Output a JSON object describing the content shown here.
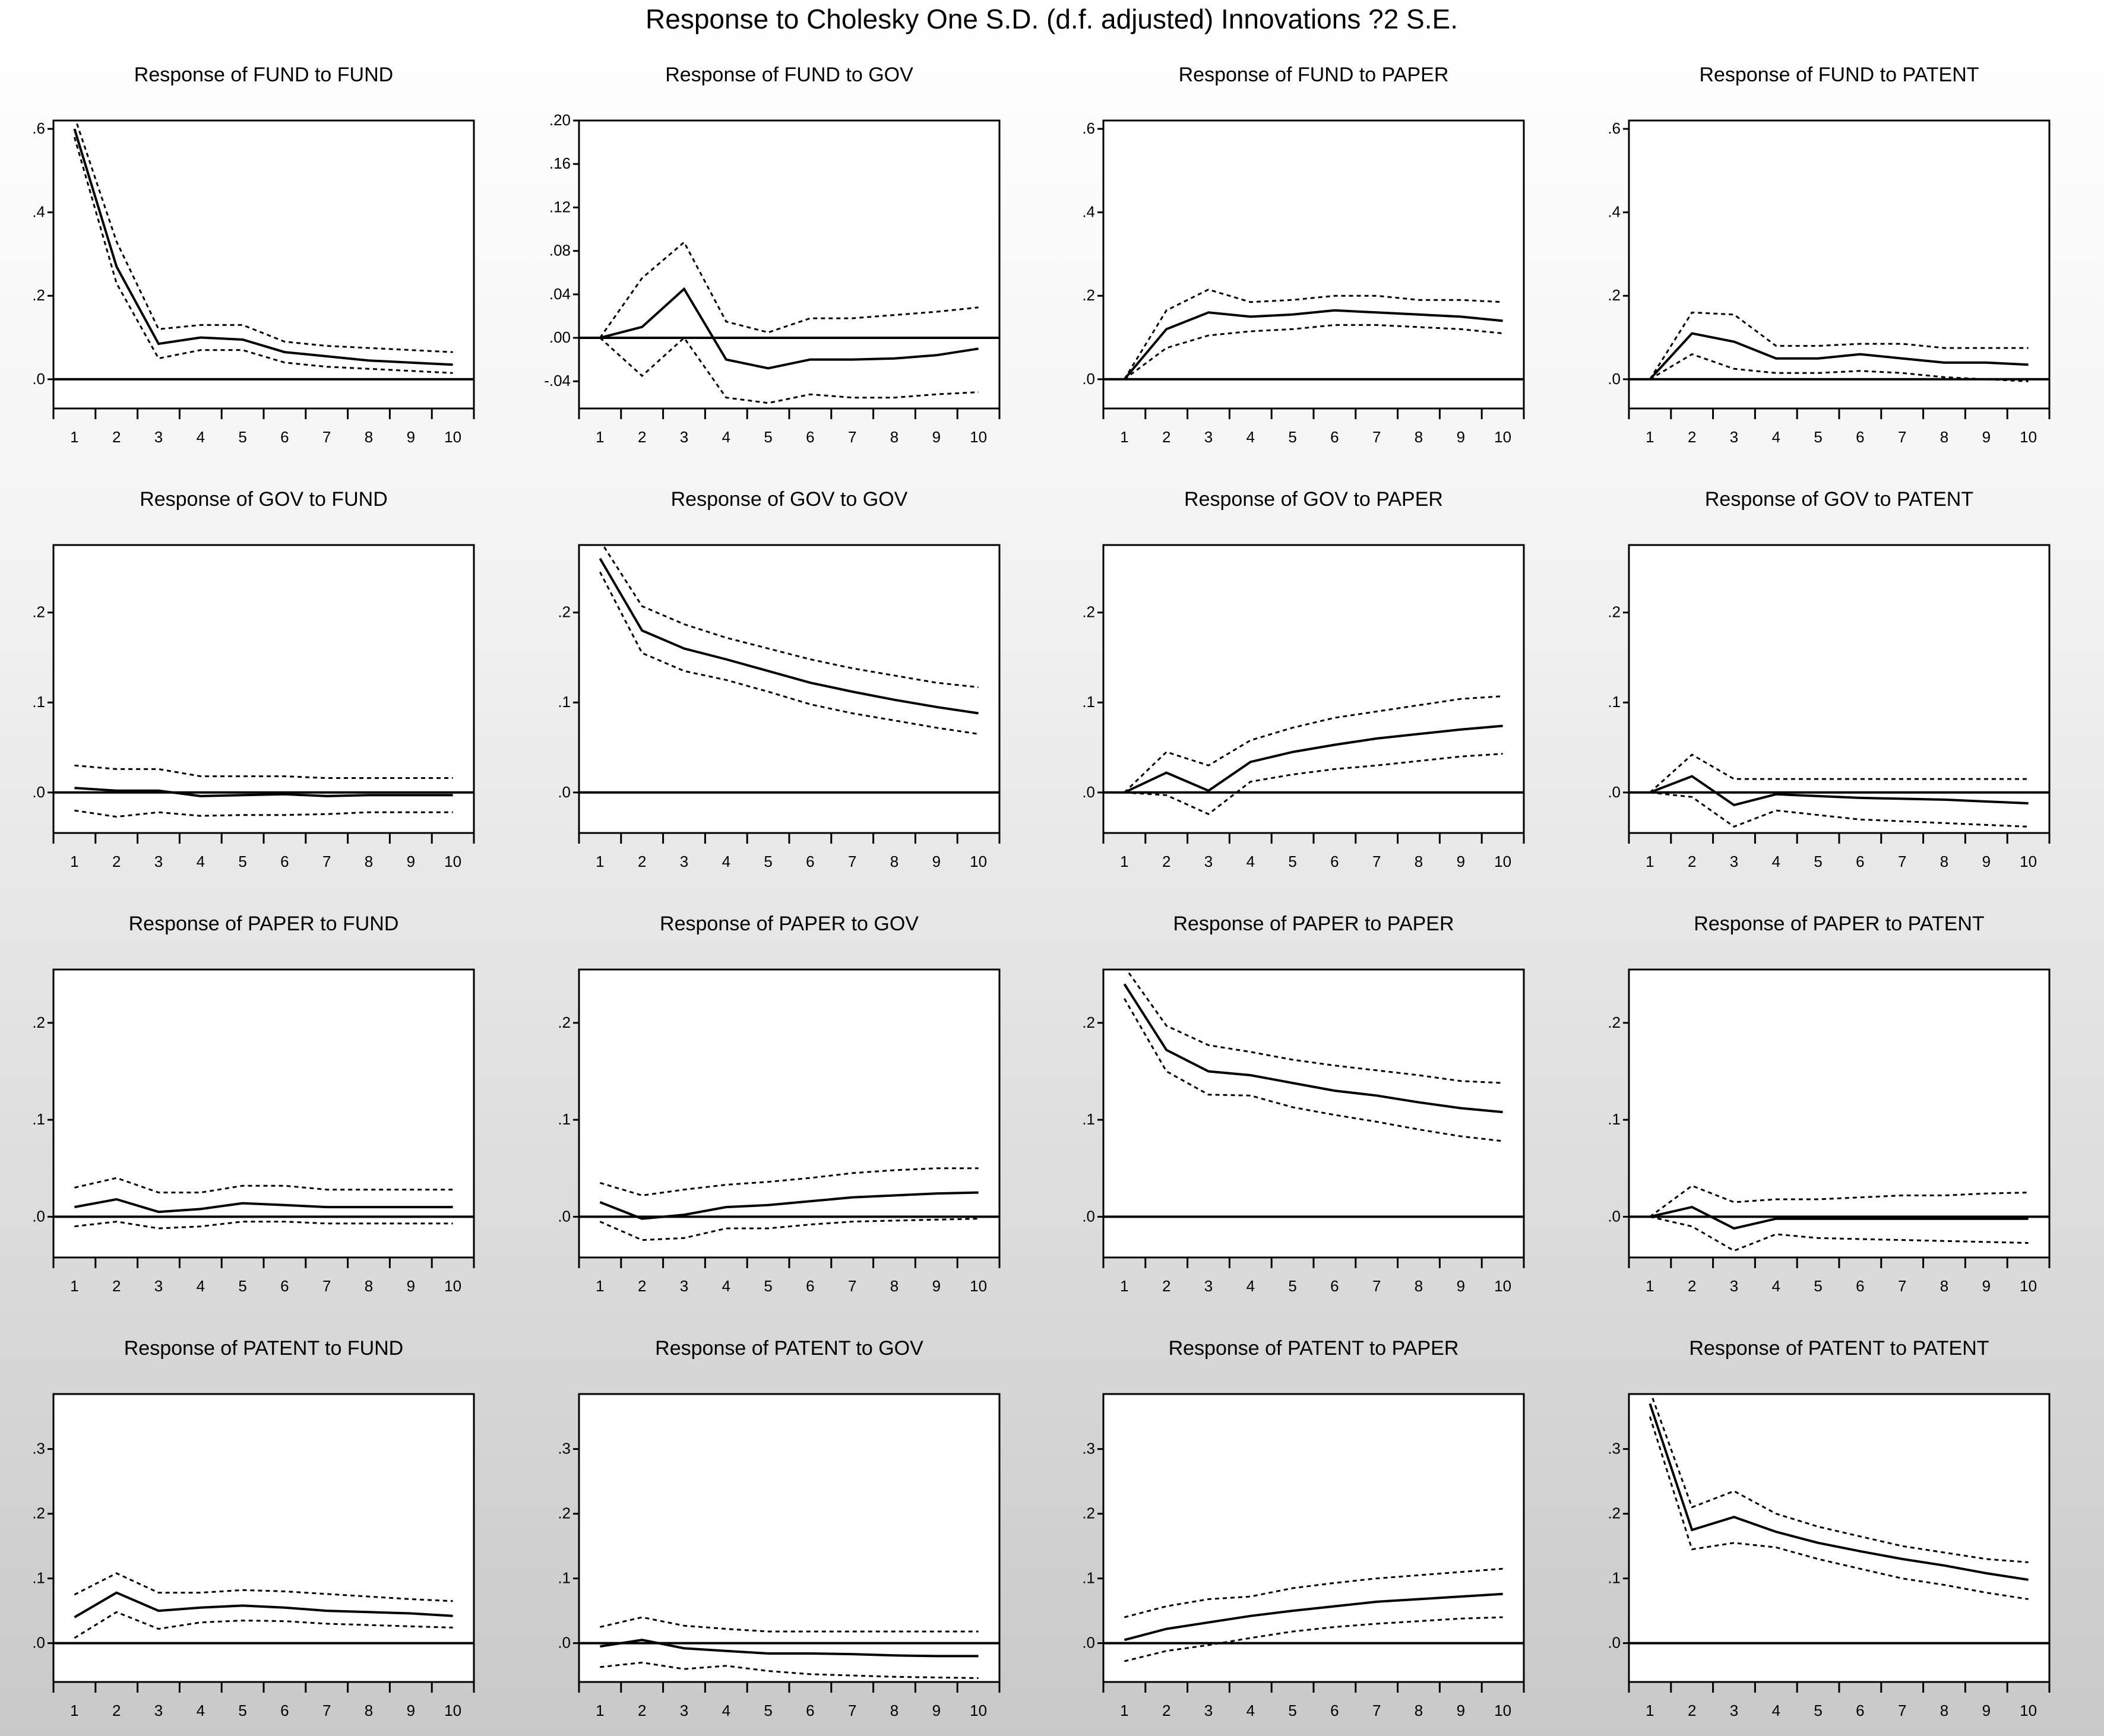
{
  "title": "Response to Cholesky One S.D. (d.f. adjusted) Innovations ?2 S.E.",
  "chart_data": [
    {
      "type": "line",
      "title": "Response of FUND to FUND",
      "x": [
        1,
        2,
        3,
        4,
        5,
        6,
        7,
        8,
        9,
        10
      ],
      "ylim": [
        -0.07,
        0.62
      ],
      "yticks": [
        0,
        0.2,
        0.4,
        0.6
      ],
      "ytick_labels": [
        ".0",
        ".2",
        ".4",
        ".6"
      ],
      "series": [
        {
          "values": [
            0.6,
            0.27,
            0.085,
            0.1,
            0.095,
            0.065,
            0.055,
            0.045,
            0.04,
            0.035
          ]
        },
        {
          "values": [
            0.63,
            0.33,
            0.12,
            0.13,
            0.13,
            0.09,
            0.08,
            0.075,
            0.07,
            0.065
          ]
        },
        {
          "values": [
            0.58,
            0.23,
            0.05,
            0.07,
            0.07,
            0.04,
            0.03,
            0.025,
            0.02,
            0.015
          ]
        }
      ]
    },
    {
      "type": "line",
      "title": "Response of FUND to GOV",
      "x": [
        1,
        2,
        3,
        4,
        5,
        6,
        7,
        8,
        9,
        10
      ],
      "ylim": [
        -0.065,
        0.2
      ],
      "yticks": [
        -0.04,
        0,
        0.04,
        0.08,
        0.12,
        0.16,
        0.2
      ],
      "ytick_labels": [
        "-.04",
        ".00",
        ".04",
        ".08",
        ".12",
        ".16",
        ".20"
      ],
      "series": [
        {
          "values": [
            0,
            0.01,
            0.045,
            -0.02,
            -0.028,
            -0.02,
            -0.02,
            -0.019,
            -0.016,
            -0.01
          ]
        },
        {
          "values": [
            0,
            0.055,
            0.088,
            0.015,
            0.005,
            0.018,
            0.018,
            0.021,
            0.024,
            0.028
          ]
        },
        {
          "values": [
            0,
            -0.035,
            0,
            -0.055,
            -0.06,
            -0.052,
            -0.055,
            -0.055,
            -0.052,
            -0.05
          ]
        }
      ]
    },
    {
      "type": "line",
      "title": "Response of FUND to PAPER",
      "x": [
        1,
        2,
        3,
        4,
        5,
        6,
        7,
        8,
        9,
        10
      ],
      "ylim": [
        -0.07,
        0.62
      ],
      "yticks": [
        0,
        0.2,
        0.4,
        0.6
      ],
      "ytick_labels": [
        ".0",
        ".2",
        ".4",
        ".6"
      ],
      "series": [
        {
          "values": [
            0,
            0.12,
            0.16,
            0.15,
            0.155,
            0.165,
            0.16,
            0.155,
            0.15,
            0.14
          ]
        },
        {
          "values": [
            0,
            0.165,
            0.215,
            0.185,
            0.19,
            0.2,
            0.2,
            0.19,
            0.19,
            0.185
          ]
        },
        {
          "values": [
            0,
            0.075,
            0.105,
            0.115,
            0.12,
            0.13,
            0.13,
            0.125,
            0.12,
            0.11
          ]
        }
      ]
    },
    {
      "type": "line",
      "title": "Response of FUND to PATENT",
      "x": [
        1,
        2,
        3,
        4,
        5,
        6,
        7,
        8,
        9,
        10
      ],
      "ylim": [
        -0.07,
        0.62
      ],
      "yticks": [
        0,
        0.2,
        0.4,
        0.6
      ],
      "ytick_labels": [
        ".0",
        ".2",
        ".4",
        ".6"
      ],
      "series": [
        {
          "values": [
            0,
            0.11,
            0.09,
            0.05,
            0.05,
            0.06,
            0.05,
            0.04,
            0.04,
            0.035
          ]
        },
        {
          "values": [
            0,
            0.16,
            0.155,
            0.08,
            0.08,
            0.085,
            0.085,
            0.075,
            0.075,
            0.075
          ]
        },
        {
          "values": [
            0,
            0.06,
            0.025,
            0.015,
            0.015,
            0.02,
            0.015,
            0.005,
            0.0,
            -0.005
          ]
        }
      ]
    },
    {
      "type": "line",
      "title": "Response of GOV to FUND",
      "x": [
        1,
        2,
        3,
        4,
        5,
        6,
        7,
        8,
        9,
        10
      ],
      "ylim": [
        -0.045,
        0.275
      ],
      "yticks": [
        0,
        0.1,
        0.2
      ],
      "ytick_labels": [
        ".0",
        ".1",
        ".2"
      ],
      "series": [
        {
          "values": [
            0.005,
            0.002,
            0.002,
            -0.004,
            -0.003,
            -0.002,
            -0.004,
            -0.003,
            -0.003,
            -0.003
          ]
        },
        {
          "values": [
            0.03,
            0.026,
            0.026,
            0.018,
            0.018,
            0.018,
            0.016,
            0.016,
            0.016,
            0.016
          ]
        },
        {
          "values": [
            -0.02,
            -0.027,
            -0.022,
            -0.026,
            -0.025,
            -0.025,
            -0.024,
            -0.022,
            -0.022,
            -0.022
          ]
        }
      ]
    },
    {
      "type": "line",
      "title": "Response of GOV to GOV",
      "x": [
        1,
        2,
        3,
        4,
        5,
        6,
        7,
        8,
        9,
        10
      ],
      "ylim": [
        -0.045,
        0.275
      ],
      "yticks": [
        0,
        0.1,
        0.2
      ],
      "ytick_labels": [
        ".0",
        ".1",
        ".2"
      ],
      "series": [
        {
          "values": [
            0.26,
            0.18,
            0.16,
            0.148,
            0.135,
            0.122,
            0.112,
            0.103,
            0.095,
            0.088
          ]
        },
        {
          "values": [
            0.28,
            0.207,
            0.187,
            0.172,
            0.16,
            0.148,
            0.138,
            0.13,
            0.122,
            0.117
          ]
        },
        {
          "values": [
            0.245,
            0.155,
            0.135,
            0.125,
            0.112,
            0.098,
            0.088,
            0.08,
            0.072,
            0.065
          ]
        }
      ]
    },
    {
      "type": "line",
      "title": "Response of GOV to PAPER",
      "x": [
        1,
        2,
        3,
        4,
        5,
        6,
        7,
        8,
        9,
        10
      ],
      "ylim": [
        -0.045,
        0.275
      ],
      "yticks": [
        0,
        0.1,
        0.2
      ],
      "ytick_labels": [
        ".0",
        ".1",
        ".2"
      ],
      "series": [
        {
          "values": [
            0,
            0.022,
            0.002,
            0.034,
            0.045,
            0.053,
            0.06,
            0.065,
            0.07,
            0.074
          ]
        },
        {
          "values": [
            0,
            0.045,
            0.03,
            0.058,
            0.072,
            0.083,
            0.09,
            0.097,
            0.104,
            0.107
          ]
        },
        {
          "values": [
            0,
            -0.003,
            -0.024,
            0.012,
            0.02,
            0.026,
            0.03,
            0.035,
            0.04,
            0.043
          ]
        }
      ]
    },
    {
      "type": "line",
      "title": "Response of GOV to PATENT",
      "x": [
        1,
        2,
        3,
        4,
        5,
        6,
        7,
        8,
        9,
        10
      ],
      "ylim": [
        -0.045,
        0.275
      ],
      "yticks": [
        0,
        0.1,
        0.2
      ],
      "ytick_labels": [
        ".0",
        ".1",
        ".2"
      ],
      "series": [
        {
          "values": [
            0,
            0.018,
            -0.014,
            -0.002,
            -0.004,
            -0.006,
            -0.007,
            -0.008,
            -0.01,
            -0.012
          ]
        },
        {
          "values": [
            0,
            0.042,
            0.015,
            0.015,
            0.015,
            0.015,
            0.015,
            0.015,
            0.015,
            0.015
          ]
        },
        {
          "values": [
            0,
            -0.005,
            -0.038,
            -0.02,
            -0.025,
            -0.03,
            -0.032,
            -0.034,
            -0.036,
            -0.038
          ]
        }
      ]
    },
    {
      "type": "line",
      "title": "Response of PAPER to FUND",
      "x": [
        1,
        2,
        3,
        4,
        5,
        6,
        7,
        8,
        9,
        10
      ],
      "ylim": [
        -0.042,
        0.255
      ],
      "yticks": [
        0,
        0.1,
        0.2
      ],
      "ytick_labels": [
        ".0",
        ".1",
        ".2"
      ],
      "series": [
        {
          "values": [
            0.01,
            0.018,
            0.005,
            0.008,
            0.014,
            0.012,
            0.01,
            0.01,
            0.01,
            0.01
          ]
        },
        {
          "values": [
            0.03,
            0.04,
            0.025,
            0.025,
            0.032,
            0.032,
            0.028,
            0.028,
            0.028,
            0.028
          ]
        },
        {
          "values": [
            -0.01,
            -0.005,
            -0.012,
            -0.01,
            -0.005,
            -0.005,
            -0.007,
            -0.007,
            -0.007,
            -0.007
          ]
        }
      ]
    },
    {
      "type": "line",
      "title": "Response of PAPER to GOV",
      "x": [
        1,
        2,
        3,
        4,
        5,
        6,
        7,
        8,
        9,
        10
      ],
      "ylim": [
        -0.042,
        0.255
      ],
      "yticks": [
        0,
        0.1,
        0.2
      ],
      "ytick_labels": [
        ".0",
        ".1",
        ".2"
      ],
      "series": [
        {
          "values": [
            0.015,
            -0.002,
            0.002,
            0.01,
            0.012,
            0.016,
            0.02,
            0.022,
            0.024,
            0.025
          ]
        },
        {
          "values": [
            0.035,
            0.022,
            0.028,
            0.033,
            0.036,
            0.04,
            0.045,
            0.048,
            0.05,
            0.05
          ]
        },
        {
          "values": [
            -0.005,
            -0.024,
            -0.022,
            -0.012,
            -0.012,
            -0.008,
            -0.005,
            -0.004,
            -0.003,
            -0.002
          ]
        }
      ]
    },
    {
      "type": "line",
      "title": "Response of PAPER to PAPER",
      "x": [
        1,
        2,
        3,
        4,
        5,
        6,
        7,
        8,
        9,
        10
      ],
      "ylim": [
        -0.042,
        0.255
      ],
      "yticks": [
        0,
        0.1,
        0.2
      ],
      "ytick_labels": [
        ".0",
        ".1",
        ".2"
      ],
      "series": [
        {
          "values": [
            0.24,
            0.172,
            0.15,
            0.146,
            0.138,
            0.13,
            0.125,
            0.118,
            0.112,
            0.108
          ]
        },
        {
          "values": [
            0.258,
            0.197,
            0.177,
            0.17,
            0.162,
            0.156,
            0.151,
            0.146,
            0.14,
            0.138
          ]
        },
        {
          "values": [
            0.225,
            0.15,
            0.126,
            0.125,
            0.113,
            0.105,
            0.098,
            0.09,
            0.083,
            0.078
          ]
        }
      ]
    },
    {
      "type": "line",
      "title": "Response of PAPER to PATENT",
      "x": [
        1,
        2,
        3,
        4,
        5,
        6,
        7,
        8,
        9,
        10
      ],
      "ylim": [
        -0.042,
        0.255
      ],
      "yticks": [
        0,
        0.1,
        0.2
      ],
      "ytick_labels": [
        ".0",
        ".1",
        ".2"
      ],
      "series": [
        {
          "values": [
            0,
            0.01,
            -0.012,
            -0.002,
            -0.002,
            -0.002,
            -0.002,
            -0.002,
            -0.002,
            -0.002
          ]
        },
        {
          "values": [
            0,
            0.032,
            0.015,
            0.018,
            0.018,
            0.02,
            0.022,
            0.022,
            0.024,
            0.025
          ]
        },
        {
          "values": [
            0,
            -0.01,
            -0.035,
            -0.018,
            -0.022,
            -0.023,
            -0.024,
            -0.025,
            -0.026,
            -0.027
          ]
        }
      ]
    },
    {
      "type": "line",
      "title": "Response of PATENT to FUND",
      "x": [
        1,
        2,
        3,
        4,
        5,
        6,
        7,
        8,
        9,
        10
      ],
      "ylim": [
        -0.06,
        0.385
      ],
      "yticks": [
        0,
        0.1,
        0.2,
        0.3
      ],
      "ytick_labels": [
        ".0",
        ".1",
        ".2",
        ".3"
      ],
      "series": [
        {
          "values": [
            0.04,
            0.078,
            0.05,
            0.055,
            0.058,
            0.055,
            0.05,
            0.048,
            0.046,
            0.042
          ]
        },
        {
          "values": [
            0.075,
            0.108,
            0.078,
            0.078,
            0.082,
            0.08,
            0.076,
            0.072,
            0.068,
            0.065
          ]
        },
        {
          "values": [
            0.008,
            0.048,
            0.022,
            0.032,
            0.035,
            0.034,
            0.03,
            0.028,
            0.026,
            0.024
          ]
        }
      ]
    },
    {
      "type": "line",
      "title": "Response of PATENT to GOV",
      "x": [
        1,
        2,
        3,
        4,
        5,
        6,
        7,
        8,
        9,
        10
      ],
      "ylim": [
        -0.06,
        0.385
      ],
      "yticks": [
        0,
        0.1,
        0.2,
        0.3
      ],
      "ytick_labels": [
        ".0",
        ".1",
        ".2",
        ".3"
      ],
      "series": [
        {
          "values": [
            -0.005,
            0.005,
            -0.008,
            -0.012,
            -0.016,
            -0.016,
            -0.017,
            -0.019,
            -0.02,
            -0.02
          ]
        },
        {
          "values": [
            0.025,
            0.04,
            0.027,
            0.022,
            0.018,
            0.018,
            0.018,
            0.018,
            0.018,
            0.018
          ]
        },
        {
          "values": [
            -0.037,
            -0.03,
            -0.04,
            -0.035,
            -0.043,
            -0.048,
            -0.05,
            -0.052,
            -0.053,
            -0.054
          ]
        }
      ]
    },
    {
      "type": "line",
      "title": "Response of PATENT to PAPER",
      "x": [
        1,
        2,
        3,
        4,
        5,
        6,
        7,
        8,
        9,
        10
      ],
      "ylim": [
        -0.06,
        0.385
      ],
      "yticks": [
        0,
        0.1,
        0.2,
        0.3
      ],
      "ytick_labels": [
        ".0",
        ".1",
        ".2",
        ".3"
      ],
      "series": [
        {
          "values": [
            0.005,
            0.022,
            0.032,
            0.042,
            0.05,
            0.057,
            0.064,
            0.068,
            0.072,
            0.076
          ]
        },
        {
          "values": [
            0.04,
            0.057,
            0.068,
            0.072,
            0.085,
            0.093,
            0.1,
            0.105,
            0.11,
            0.115
          ]
        },
        {
          "values": [
            -0.028,
            -0.012,
            -0.003,
            0.008,
            0.018,
            0.025,
            0.03,
            0.034,
            0.038,
            0.04
          ]
        }
      ]
    },
    {
      "type": "line",
      "title": "Response of PATENT to PATENT",
      "x": [
        1,
        2,
        3,
        4,
        5,
        6,
        7,
        8,
        9,
        10
      ],
      "ylim": [
        -0.06,
        0.385
      ],
      "yticks": [
        0,
        0.1,
        0.2,
        0.3
      ],
      "ytick_labels": [
        ".0",
        ".1",
        ".2",
        ".3"
      ],
      "series": [
        {
          "values": [
            0.37,
            0.175,
            0.195,
            0.172,
            0.155,
            0.142,
            0.13,
            0.12,
            0.108,
            0.098
          ]
        },
        {
          "values": [
            0.39,
            0.21,
            0.235,
            0.2,
            0.18,
            0.165,
            0.15,
            0.14,
            0.13,
            0.125
          ]
        },
        {
          "values": [
            0.35,
            0.145,
            0.155,
            0.148,
            0.13,
            0.115,
            0.1,
            0.09,
            0.078,
            0.068
          ]
        }
      ]
    }
  ]
}
